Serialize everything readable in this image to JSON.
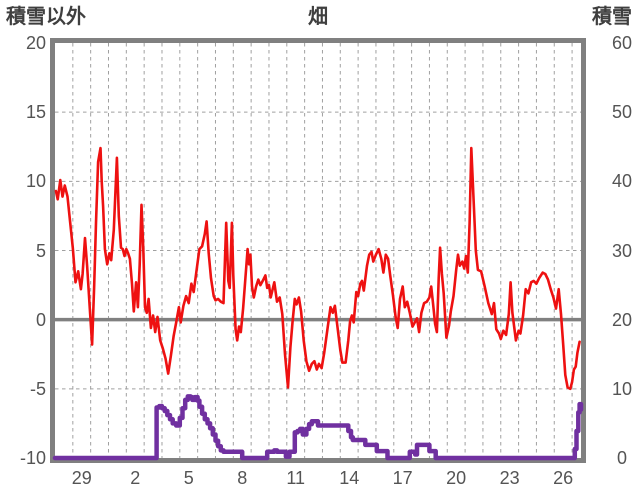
{
  "header": {
    "left_axis_title": "積雪以外",
    "chart_title": "畑",
    "right_axis_title": "積雪"
  },
  "colors": {
    "temperature_line": "#ee1111",
    "snow_line": "#7030a0",
    "plot_border": "#808080",
    "zero_line": "#808080",
    "gridline": "#a0a0a0",
    "tick_text": "#545454",
    "header_text": "#3f3f3f",
    "background": "#ffffff"
  },
  "chart_data": {
    "type": "line",
    "title": "畑",
    "legend": "none",
    "grid": "dashed daily vertical and 5-unit horizontal gridlines, solid zero line",
    "left_axis": {
      "label": "積雪以外",
      "min": -10,
      "max": 20,
      "ticks": [
        20,
        15,
        10,
        5,
        0,
        -5,
        -10
      ]
    },
    "right_axis": {
      "label": "積雪",
      "min": 0,
      "max": 60,
      "ticks": [
        60,
        50,
        40,
        30,
        20,
        10,
        0
      ]
    },
    "x_axis": {
      "tick_labels": [
        "29",
        "2",
        "5",
        "8",
        "11",
        "14",
        "17",
        "20",
        "23",
        "26"
      ],
      "tick_positions_days": [
        1.5,
        4.5,
        7.5,
        10.5,
        13.5,
        16.5,
        19.5,
        22.5,
        25.5,
        28.5
      ],
      "days_total": 29.5,
      "gridline_every_days": 1
    },
    "zero_line_value": 0,
    "series": [
      {
        "name": "temperature",
        "axis": "left",
        "style": "line",
        "color": "#ee1111",
        "stroke_width": 2.6,
        "points": [
          [
            0.05,
            9.3
          ],
          [
            0.15,
            8.7
          ],
          [
            0.3,
            10.1
          ],
          [
            0.42,
            8.9
          ],
          [
            0.55,
            9.7
          ],
          [
            0.7,
            8.9
          ],
          [
            0.85,
            7.0
          ],
          [
            1.0,
            5.2
          ],
          [
            1.15,
            2.7
          ],
          [
            1.3,
            3.5
          ],
          [
            1.45,
            2.2
          ],
          [
            1.55,
            3.3
          ],
          [
            1.68,
            5.9
          ],
          [
            1.8,
            3.9
          ],
          [
            1.95,
            0.8
          ],
          [
            2.08,
            -1.8
          ],
          [
            2.2,
            2.5
          ],
          [
            2.3,
            7.0
          ],
          [
            2.42,
            11.4
          ],
          [
            2.55,
            12.4
          ],
          [
            2.62,
            10.0
          ],
          [
            2.7,
            8.2
          ],
          [
            2.8,
            5.1
          ],
          [
            2.93,
            4.0
          ],
          [
            3.05,
            4.8
          ],
          [
            3.15,
            4.3
          ],
          [
            3.3,
            6.5
          ],
          [
            3.47,
            11.7
          ],
          [
            3.58,
            7.5
          ],
          [
            3.7,
            5.2
          ],
          [
            3.8,
            5.1
          ],
          [
            3.9,
            4.6
          ],
          [
            4.0,
            5.1
          ],
          [
            4.1,
            4.8
          ],
          [
            4.2,
            4.4
          ],
          [
            4.32,
            2.6
          ],
          [
            4.42,
            0.6
          ],
          [
            4.55,
            2.7
          ],
          [
            4.65,
            0.9
          ],
          [
            4.75,
            4.0
          ],
          [
            4.85,
            8.3
          ],
          [
            4.95,
            5.1
          ],
          [
            5.05,
            0.9
          ],
          [
            5.15,
            0.5
          ],
          [
            5.25,
            1.5
          ],
          [
            5.38,
            -0.6
          ],
          [
            5.5,
            0.3
          ],
          [
            5.62,
            -0.9
          ],
          [
            5.75,
            0.2
          ],
          [
            5.9,
            -1.5
          ],
          [
            6.05,
            -2.1
          ],
          [
            6.2,
            -2.8
          ],
          [
            6.35,
            -3.9
          ],
          [
            6.5,
            -2.6
          ],
          [
            6.65,
            -1.2
          ],
          [
            6.8,
            -0.2
          ],
          [
            6.95,
            0.9
          ],
          [
            7.05,
            -0.2
          ],
          [
            7.2,
            1.0
          ],
          [
            7.35,
            1.7
          ],
          [
            7.5,
            1.2
          ],
          [
            7.65,
            2.6
          ],
          [
            7.78,
            2.0
          ],
          [
            7.95,
            3.7
          ],
          [
            8.1,
            5.1
          ],
          [
            8.25,
            5.3
          ],
          [
            8.4,
            6.2
          ],
          [
            8.5,
            7.1
          ],
          [
            8.62,
            4.8
          ],
          [
            8.75,
            3.0
          ],
          [
            8.9,
            1.7
          ],
          [
            9.0,
            1.4
          ],
          [
            9.15,
            1.5
          ],
          [
            9.3,
            1.3
          ],
          [
            9.45,
            1.2
          ],
          [
            9.6,
            7.0
          ],
          [
            9.72,
            2.8
          ],
          [
            9.8,
            2.3
          ],
          [
            9.92,
            7.0
          ],
          [
            10.0,
            3.2
          ],
          [
            10.13,
            -0.7
          ],
          [
            10.22,
            -1.5
          ],
          [
            10.32,
            -0.5
          ],
          [
            10.42,
            -0.9
          ],
          [
            10.55,
            0.8
          ],
          [
            10.68,
            3.0
          ],
          [
            10.8,
            5.1
          ],
          [
            10.88,
            4.0
          ],
          [
            10.96,
            4.7
          ],
          [
            11.05,
            2.4
          ],
          [
            11.15,
            1.6
          ],
          [
            11.28,
            2.4
          ],
          [
            11.4,
            2.9
          ],
          [
            11.52,
            2.5
          ],
          [
            11.65,
            2.8
          ],
          [
            11.8,
            3.2
          ],
          [
            11.9,
            2.3
          ],
          [
            12.0,
            2.5
          ],
          [
            12.1,
            1.6
          ],
          [
            12.3,
            2.7
          ],
          [
            12.45,
            1.3
          ],
          [
            12.6,
            1.6
          ],
          [
            12.75,
            0.4
          ],
          [
            12.9,
            -2.5
          ],
          [
            13.07,
            -4.9
          ],
          [
            13.2,
            -2.0
          ],
          [
            13.32,
            -0.2
          ],
          [
            13.45,
            1.5
          ],
          [
            13.55,
            1.1
          ],
          [
            13.68,
            1.6
          ],
          [
            13.8,
            0.6
          ],
          [
            13.95,
            -1.5
          ],
          [
            14.1,
            -3.0
          ],
          [
            14.25,
            -3.7
          ],
          [
            14.4,
            -3.2
          ],
          [
            14.55,
            -3.0
          ],
          [
            14.68,
            -3.6
          ],
          [
            14.8,
            -3.2
          ],
          [
            14.95,
            -3.5
          ],
          [
            15.1,
            -2.4
          ],
          [
            15.3,
            -0.5
          ],
          [
            15.45,
            0.9
          ],
          [
            15.58,
            0.5
          ],
          [
            15.7,
            1.0
          ],
          [
            15.85,
            -0.6
          ],
          [
            16.0,
            -2.2
          ],
          [
            16.12,
            -3.1
          ],
          [
            16.3,
            -3.1
          ],
          [
            16.45,
            -1.5
          ],
          [
            16.55,
            -0.1
          ],
          [
            16.65,
            0.3
          ],
          [
            16.75,
            -0.2
          ],
          [
            16.9,
            2.0
          ],
          [
            17.0,
            1.7
          ],
          [
            17.12,
            2.6
          ],
          [
            17.22,
            2.8
          ],
          [
            17.32,
            2.1
          ],
          [
            17.5,
            3.9
          ],
          [
            17.62,
            4.7
          ],
          [
            17.75,
            4.9
          ],
          [
            17.85,
            4.2
          ],
          [
            18.0,
            4.7
          ],
          [
            18.15,
            5.1
          ],
          [
            18.3,
            4.4
          ],
          [
            18.42,
            3.4
          ],
          [
            18.55,
            4.7
          ],
          [
            18.68,
            4.4
          ],
          [
            18.8,
            3.2
          ],
          [
            18.95,
            1.8
          ],
          [
            19.1,
            0.2
          ],
          [
            19.22,
            -0.6
          ],
          [
            19.35,
            1.5
          ],
          [
            19.5,
            2.4
          ],
          [
            19.62,
            0.9
          ],
          [
            19.75,
            1.3
          ],
          [
            19.9,
            0.5
          ],
          [
            20.05,
            -0.5
          ],
          [
            20.18,
            -0.2
          ],
          [
            20.3,
            0.1
          ],
          [
            20.42,
            -0.9
          ],
          [
            20.55,
            0.5
          ],
          [
            20.7,
            1.2
          ],
          [
            20.85,
            1.3
          ],
          [
            21.0,
            1.6
          ],
          [
            21.1,
            2.4
          ],
          [
            21.2,
            1.2
          ],
          [
            21.32,
            -0.3
          ],
          [
            21.42,
            -0.9
          ],
          [
            21.52,
            3.0
          ],
          [
            21.6,
            5.2
          ],
          [
            21.7,
            3.3
          ],
          [
            21.8,
            1.9
          ],
          [
            21.95,
            -1.3
          ],
          [
            22.1,
            -0.4
          ],
          [
            22.2,
            0.6
          ],
          [
            22.35,
            1.7
          ],
          [
            22.5,
            3.6
          ],
          [
            22.6,
            4.7
          ],
          [
            22.7,
            3.9
          ],
          [
            22.85,
            4.2
          ],
          [
            22.95,
            3.7
          ],
          [
            23.05,
            4.6
          ],
          [
            23.15,
            3.4
          ],
          [
            23.25,
            7.0
          ],
          [
            23.35,
            12.4
          ],
          [
            23.5,
            8.0
          ],
          [
            23.6,
            5.0
          ],
          [
            23.72,
            3.6
          ],
          [
            23.9,
            3.5
          ],
          [
            24.1,
            2.4
          ],
          [
            24.3,
            1.2
          ],
          [
            24.5,
            0.4
          ],
          [
            24.62,
            1.2
          ],
          [
            24.75,
            -0.7
          ],
          [
            24.9,
            -1.0
          ],
          [
            25.0,
            -1.4
          ],
          [
            25.15,
            -0.8
          ],
          [
            25.3,
            -1.1
          ],
          [
            25.45,
            0.4
          ],
          [
            25.55,
            2.7
          ],
          [
            25.65,
            0.5
          ],
          [
            25.85,
            -1.5
          ],
          [
            26.0,
            -0.8
          ],
          [
            26.1,
            -1.0
          ],
          [
            26.25,
            0.3
          ],
          [
            26.4,
            2.2
          ],
          [
            26.55,
            1.9
          ],
          [
            26.7,
            2.7
          ],
          [
            26.85,
            2.8
          ],
          [
            27.0,
            2.6
          ],
          [
            27.15,
            3.0
          ],
          [
            27.35,
            3.4
          ],
          [
            27.5,
            3.3
          ],
          [
            27.65,
            2.9
          ],
          [
            27.8,
            2.2
          ],
          [
            27.95,
            1.6
          ],
          [
            28.1,
            0.8
          ],
          [
            28.25,
            2.2
          ],
          [
            28.38,
            0.4
          ],
          [
            28.5,
            -1.8
          ],
          [
            28.62,
            -4.0
          ],
          [
            28.75,
            -4.9
          ],
          [
            28.9,
            -5.0
          ],
          [
            29.0,
            -4.5
          ],
          [
            29.1,
            -3.6
          ],
          [
            29.2,
            -3.4
          ],
          [
            29.3,
            -2.4
          ],
          [
            29.42,
            -1.6
          ]
        ]
      },
      {
        "name": "snow_depth",
        "axis": "right",
        "style": "step",
        "color": "#7030a0",
        "stroke_width": 4.5,
        "points": [
          [
            0,
            0
          ],
          [
            5.6,
            0
          ],
          [
            5.7,
            7.3
          ],
          [
            5.85,
            7.5
          ],
          [
            6.0,
            7.2
          ],
          [
            6.15,
            6.8
          ],
          [
            6.3,
            6.2
          ],
          [
            6.45,
            5.6
          ],
          [
            6.6,
            5.0
          ],
          [
            6.8,
            4.7
          ],
          [
            7.0,
            5.8
          ],
          [
            7.15,
            7.2
          ],
          [
            7.3,
            8.4
          ],
          [
            7.45,
            8.9
          ],
          [
            7.6,
            8.8
          ],
          [
            7.7,
            8.4
          ],
          [
            7.85,
            8.8
          ],
          [
            8.0,
            8.3
          ],
          [
            8.1,
            7.4
          ],
          [
            8.25,
            6.4
          ],
          [
            8.4,
            5.6
          ],
          [
            8.55,
            5.0
          ],
          [
            8.7,
            4.3
          ],
          [
            8.85,
            3.4
          ],
          [
            9.0,
            2.5
          ],
          [
            9.15,
            1.7
          ],
          [
            9.3,
            1.1
          ],
          [
            9.45,
            0.9
          ],
          [
            10.5,
            0
          ],
          [
            11.9,
            0.9
          ],
          [
            12.3,
            1.1
          ],
          [
            12.45,
            0.9
          ],
          [
            12.95,
            0.2
          ],
          [
            13.15,
            0.9
          ],
          [
            13.45,
            3.7
          ],
          [
            13.6,
            3.9
          ],
          [
            13.75,
            4.2
          ],
          [
            13.9,
            3.4
          ],
          [
            14.1,
            4.2
          ],
          [
            14.25,
            4.9
          ],
          [
            14.4,
            5.3
          ],
          [
            14.65,
            5.3
          ],
          [
            14.75,
            4.7
          ],
          [
            16.35,
            4.7
          ],
          [
            16.45,
            3.9
          ],
          [
            16.6,
            3.0
          ],
          [
            16.7,
            2.6
          ],
          [
            17.3,
            2.6
          ],
          [
            17.4,
            1.9
          ],
          [
            17.95,
            1.9
          ],
          [
            18.05,
            1.0
          ],
          [
            18.5,
            1.0
          ],
          [
            18.65,
            0
          ],
          [
            19.9,
            0.9
          ],
          [
            20.1,
            0.9
          ],
          [
            20.2,
            0.5
          ],
          [
            20.3,
            1.9
          ],
          [
            20.9,
            1.9
          ],
          [
            21.0,
            1.0
          ],
          [
            21.35,
            0
          ],
          [
            29.05,
            0
          ],
          [
            29.15,
            1.3
          ],
          [
            29.25,
            3.9
          ],
          [
            29.35,
            6.6
          ],
          [
            29.42,
            7.8
          ],
          [
            29.5,
            7.0
          ]
        ]
      }
    ]
  }
}
